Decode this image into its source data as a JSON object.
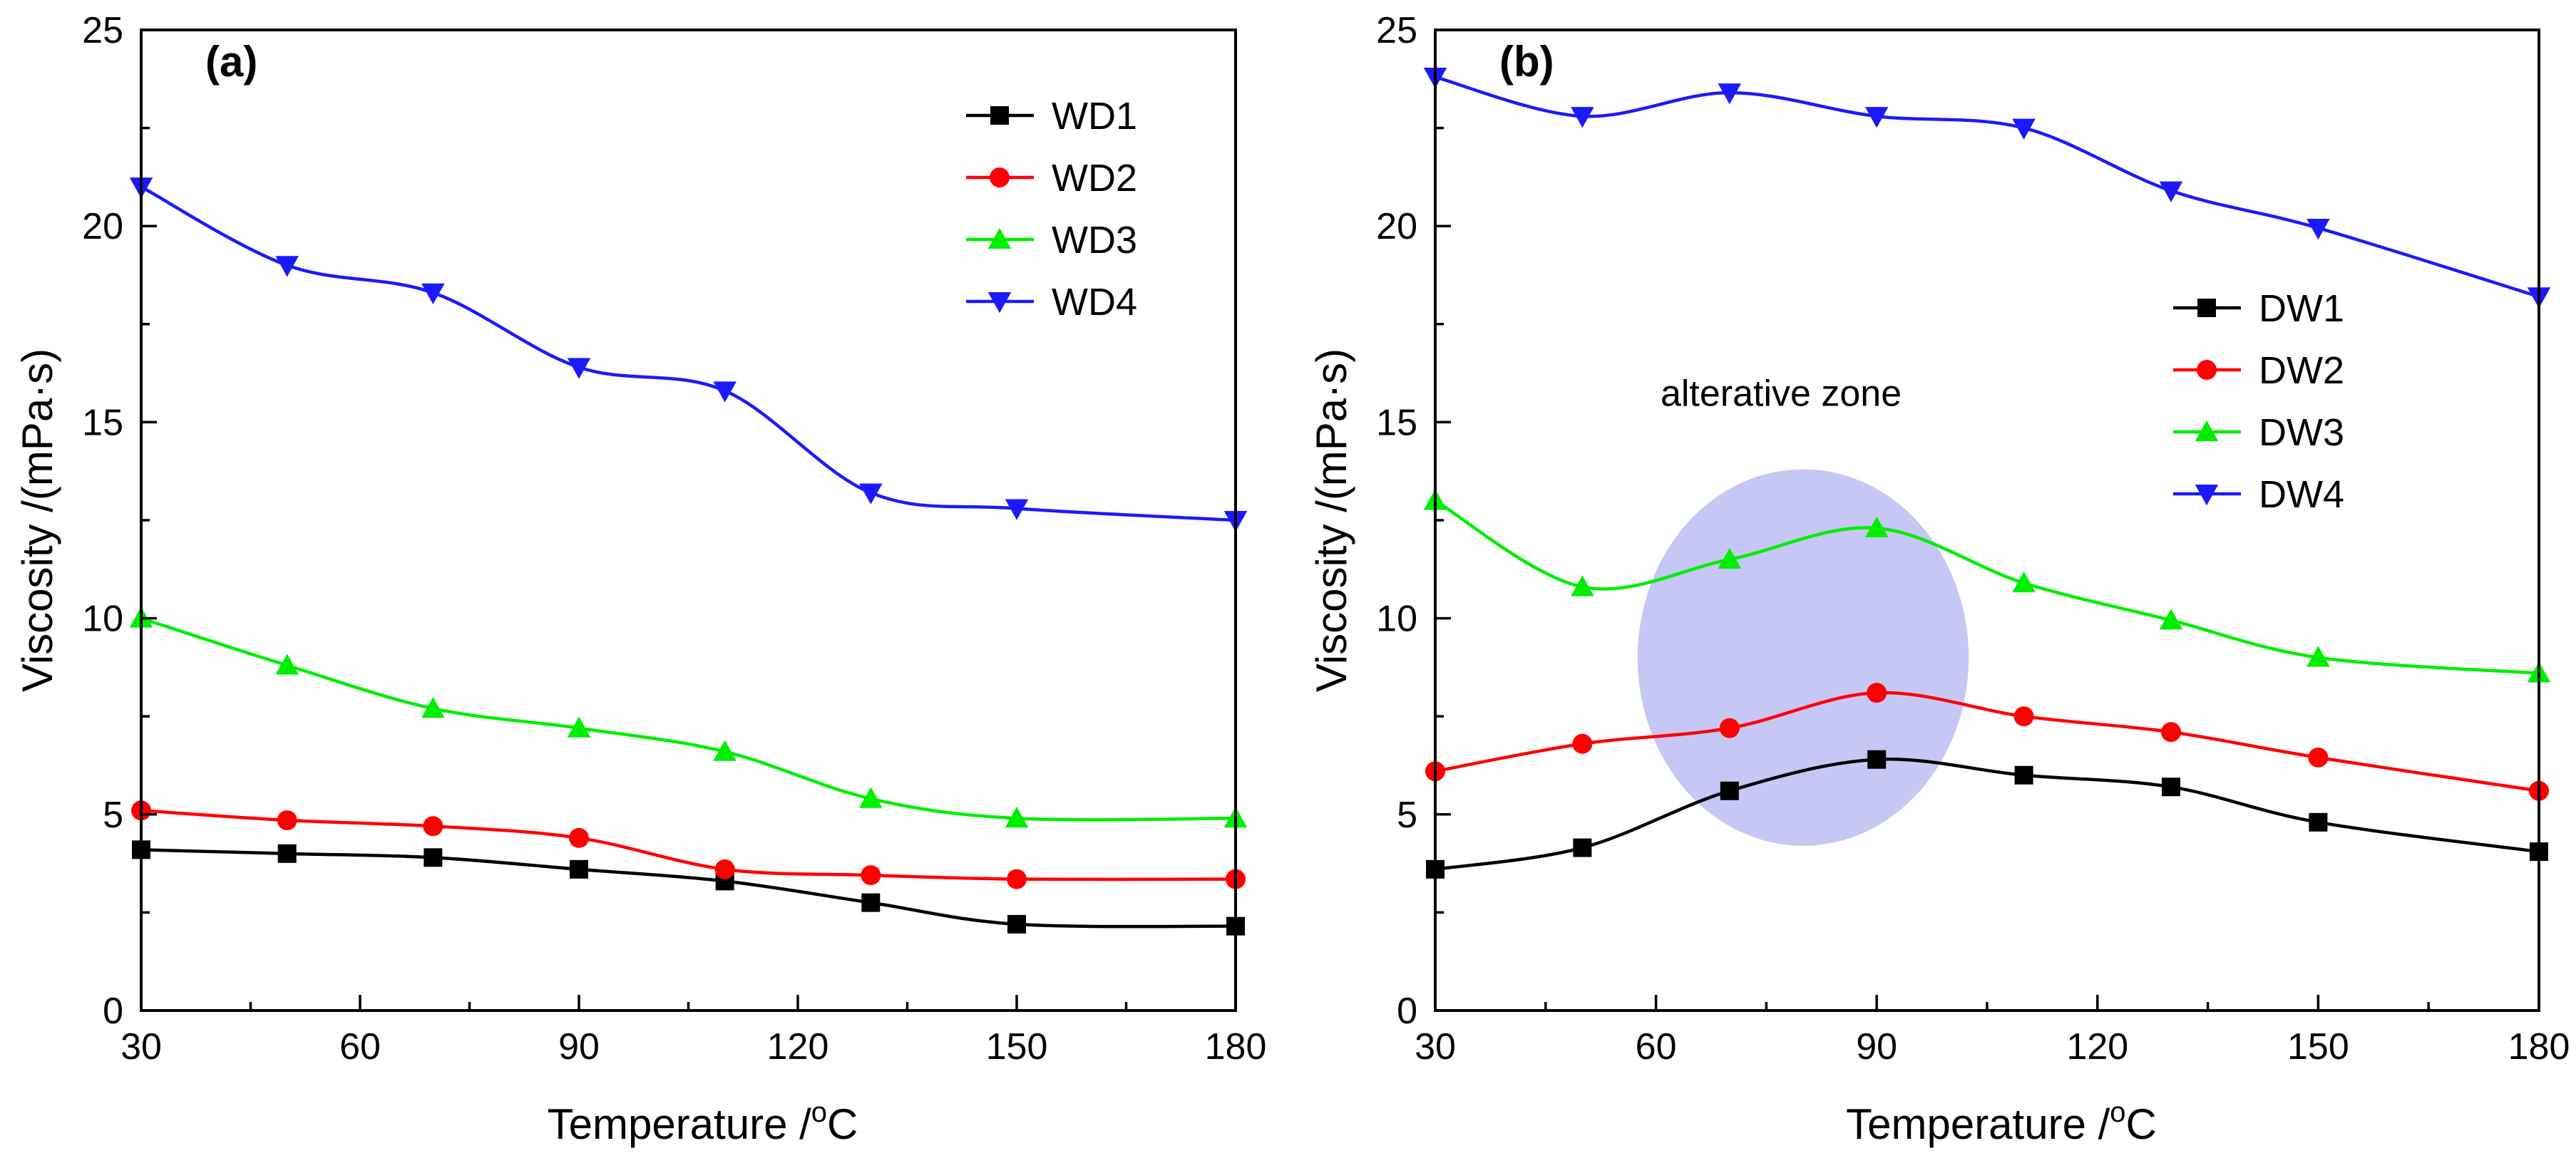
{
  "chart_data": [
    {
      "type": "line",
      "panel_label": "(a)",
      "title": "",
      "xlabel": "Temperature /",
      "xlabel_unit_sup": "o",
      "xlabel_unit": "C",
      "ylabel": "Viscosity /(mPa·s)",
      "xlim": [
        30,
        180
      ],
      "ylim": [
        0,
        25
      ],
      "xticks": [
        30,
        60,
        90,
        120,
        150,
        180
      ],
      "yticks": [
        0,
        5,
        10,
        15,
        20,
        25
      ],
      "x": [
        30,
        50,
        70,
        90,
        110,
        130,
        150,
        180
      ],
      "legend_position": "top-right",
      "series": [
        {
          "name": "WD1",
          "marker": "square",
          "color": "#000000",
          "values": [
            4.1,
            4.0,
            3.9,
            3.6,
            3.3,
            2.75,
            2.2,
            2.15
          ]
        },
        {
          "name": "WD2",
          "marker": "circle",
          "color": "#ff0000",
          "values": [
            5.1,
            4.85,
            4.7,
            4.4,
            3.6,
            3.45,
            3.35,
            3.35
          ]
        },
        {
          "name": "WD3",
          "marker": "triangle-up",
          "color": "#00ee00",
          "values": [
            10.0,
            8.8,
            7.7,
            7.2,
            6.6,
            5.4,
            4.9,
            4.9
          ]
        },
        {
          "name": "WD4",
          "marker": "triangle-down",
          "color": "#1a1aff",
          "values": [
            21.0,
            19.0,
            18.3,
            16.4,
            15.8,
            13.2,
            12.8,
            12.5
          ]
        }
      ]
    },
    {
      "type": "line",
      "panel_label": "(b)",
      "title": "",
      "xlabel": "Temperature /",
      "xlabel_unit_sup": "o",
      "xlabel_unit": "C",
      "ylabel": "Viscosity /(mPa·s)",
      "xlim": [
        30,
        180
      ],
      "ylim": [
        0,
        25
      ],
      "xticks": [
        30,
        60,
        90,
        120,
        150,
        180
      ],
      "yticks": [
        0,
        5,
        10,
        15,
        20,
        25
      ],
      "x": [
        30,
        50,
        70,
        90,
        110,
        130,
        150,
        180
      ],
      "legend_position": "right",
      "annotation": "alterative zone",
      "highlight_zone": {
        "x_center": 80,
        "y_center": 9.0,
        "x_radius": 22.5,
        "y_radius": 4.8,
        "color": "#9999ee"
      },
      "series": [
        {
          "name": "DW1",
          "marker": "square",
          "color": "#000000",
          "values": [
            3.6,
            4.15,
            5.6,
            6.4,
            6.0,
            5.7,
            4.8,
            4.05
          ]
        },
        {
          "name": "DW2",
          "marker": "circle",
          "color": "#ff0000",
          "values": [
            6.1,
            6.8,
            7.2,
            8.1,
            7.5,
            7.1,
            6.45,
            5.6
          ]
        },
        {
          "name": "DW3",
          "marker": "triangle-up",
          "color": "#00ee00",
          "values": [
            13.0,
            10.8,
            11.5,
            12.3,
            10.9,
            9.95,
            9.0,
            8.6
          ]
        },
        {
          "name": "DW4",
          "marker": "triangle-down",
          "color": "#1a1aff",
          "values": [
            23.8,
            22.8,
            23.4,
            22.8,
            22.5,
            20.9,
            19.95,
            18.2
          ]
        }
      ]
    }
  ]
}
